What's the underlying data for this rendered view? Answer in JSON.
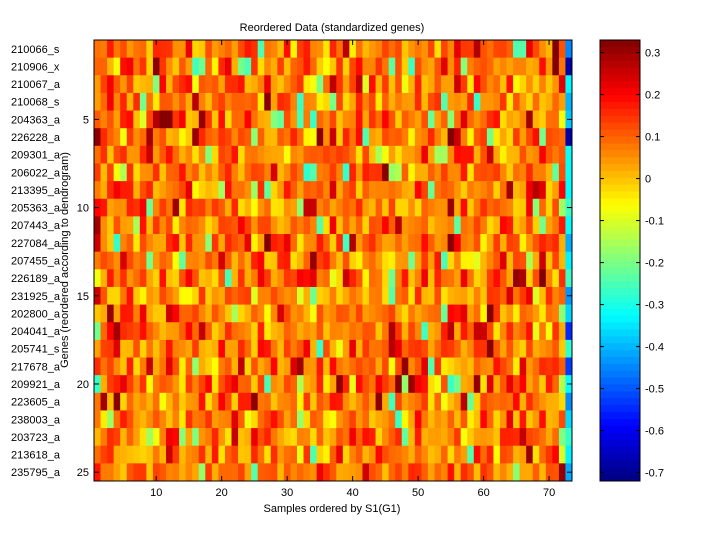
{
  "chart_data": {
    "type": "heatmap",
    "title": "Reordered Data (standardized genes)",
    "xlabel": "Samples ordered by S1(G1)",
    "ylabel": "Genes (reordered according to dendrogram)",
    "n_samples": 73,
    "n_genes": 25,
    "xlim": [
      0.5,
      73.5
    ],
    "ylim": [
      0.5,
      25.5
    ],
    "x_ticks": [
      10,
      20,
      30,
      40,
      50,
      60,
      70
    ],
    "y_ticks": [
      5,
      10,
      15,
      20,
      25
    ],
    "row_labels": [
      "210066_s",
      "210906_x",
      "210067_a",
      "210068_s",
      "204363_a",
      "226228_a",
      "209301_a",
      "206022_a",
      "213395_a",
      "205363_a",
      "207443_a",
      "227084_a",
      "207455_a",
      "226189_a",
      "231925_a",
      "202800_a",
      "204041_a",
      "205741_s",
      "217678_a",
      "209921_a",
      "223605_a",
      "238003_a",
      "203723_a",
      "213618_a",
      "235795_a"
    ],
    "colorbar": {
      "colormap": "jet",
      "clim": [
        -0.72,
        0.33
      ],
      "ticks": [
        0.3,
        0.2,
        0.1,
        0,
        -0.1,
        -0.2,
        -0.3,
        -0.4,
        -0.5,
        -0.6,
        -0.7
      ],
      "tick_labels": [
        "0.3",
        "0.2",
        "0.1",
        "0",
        "-0.1",
        "-0.2",
        "-0.3",
        "-0.4",
        "-0.5",
        "-0.6",
        "-0.7"
      ]
    },
    "values_note": "Cell-level values are not readable from the image; the matrix is approximated (mostly 0 to 0.2, with some cooler cells and a cold final column)."
  }
}
